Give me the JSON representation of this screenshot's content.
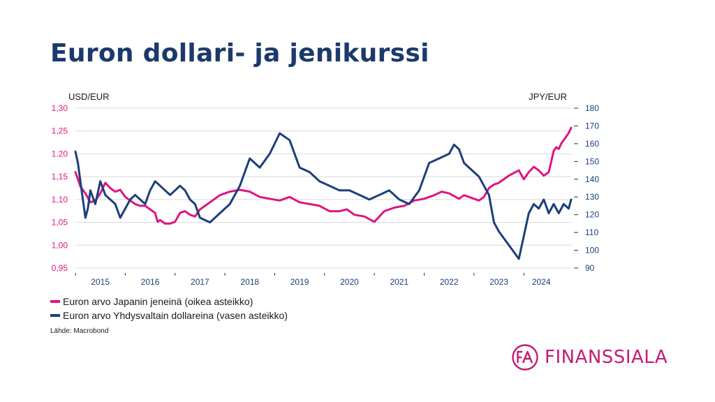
{
  "page": {
    "title": "Euron dollari- ja jenikurssi"
  },
  "legend": {
    "jpy": "Euron arvo Japanin jeneinä (oikea asteikko)",
    "usd": "Euron arvo Yhdysvaltain dollareina (vasen asteikko)"
  },
  "source": "Lähde: Macrobond",
  "logo": {
    "monogram": "FA",
    "text": "FINANSSIALA"
  },
  "colors": {
    "usd": "#1b3f7a",
    "jpy": "#e0157f",
    "grid": "#d9d9d9",
    "title": "#1b3a6b",
    "brand": "#c51a74"
  },
  "chart_data": {
    "type": "line",
    "left_axis": {
      "label": "USD/EUR",
      "range": [
        0.95,
        1.3
      ],
      "ticks": [
        1.3,
        1.25,
        1.2,
        1.15,
        1.1,
        1.05,
        1.0,
        0.95
      ],
      "tick_labels": [
        "1,30",
        "1,25",
        "1.20",
        "1,15",
        "1,10",
        "1,05",
        "1,00",
        "0,95"
      ]
    },
    "right_axis": {
      "label": "JPY/EUR",
      "range": [
        90,
        180
      ],
      "ticks": [
        180,
        170,
        160,
        150,
        140,
        130,
        120,
        110,
        100,
        90
      ],
      "tick_labels": [
        "180",
        "170",
        "160",
        "150",
        "140",
        "130",
        "120",
        "110",
        "100",
        "90"
      ]
    },
    "x_axis": {
      "range": [
        2014.5,
        2024.45
      ],
      "categories": [
        "2015",
        "2016",
        "2017",
        "2018",
        "2019",
        "2020",
        "2021",
        "2022",
        "2023",
        "2024"
      ],
      "category_positions": [
        2015.0,
        2016.0,
        2017.0,
        2018.0,
        2019.0,
        2020.0,
        2021.0,
        2022.0,
        2023.0,
        2023.85
      ],
      "tick_positions": [
        2014.5,
        2015.5,
        2016.5,
        2017.5,
        2018.5,
        2019.5,
        2020.5,
        2021.5,
        2022.5,
        2023.5
      ]
    },
    "series": [
      {
        "name": "Euron arvo Japanin jeneinä (oikea asteikko)",
        "axis": "right",
        "x": [
          2014.5,
          2014.55,
          2014.6,
          2014.7,
          2014.8,
          2014.9,
          2015.0,
          2015.1,
          2015.2,
          2015.3,
          2015.4,
          2015.5,
          2015.6,
          2015.7,
          2015.8,
          2015.9,
          2016.0,
          2016.1,
          2016.15,
          2016.2,
          2016.3,
          2016.4,
          2016.5,
          2016.6,
          2016.7,
          2016.8,
          2016.9,
          2017.0,
          2017.2,
          2017.4,
          2017.6,
          2017.8,
          2018.0,
          2018.2,
          2018.4,
          2018.6,
          2018.8,
          2019.0,
          2019.2,
          2019.4,
          2019.6,
          2019.8,
          2019.95,
          2020.1,
          2020.3,
          2020.5,
          2020.7,
          2020.9,
          2021.1,
          2021.3,
          2021.5,
          2021.7,
          2021.85,
          2022.0,
          2022.2,
          2022.3,
          2022.4,
          2022.5,
          2022.6,
          2022.7,
          2022.8,
          2022.9,
          2023.0,
          2023.2,
          2023.4,
          2023.5,
          2023.6,
          2023.7,
          2023.8,
          2023.9,
          2024.0,
          2024.05,
          2024.1,
          2024.15,
          2024.2,
          2024.25,
          2024.3,
          2024.35,
          2024.4,
          2024.45
        ],
        "y": [
          144,
          140,
          136,
          132,
          127,
          128,
          132,
          138,
          135,
          133,
          134,
          130,
          128,
          126,
          125,
          125,
          123,
          121,
          116,
          117,
          115,
          115,
          116,
          121,
          122,
          120,
          119,
          123,
          127,
          131,
          133,
          134,
          133,
          130,
          129,
          128,
          130,
          127,
          126,
          125,
          122,
          122,
          123,
          120,
          119,
          116,
          122,
          124,
          125,
          128,
          129,
          131,
          133,
          132,
          129,
          131,
          130,
          129,
          128,
          130,
          135,
          137,
          138,
          142,
          145,
          140,
          144,
          147,
          145,
          142,
          144,
          150,
          156,
          158,
          157,
          160,
          162,
          164,
          166,
          169
        ]
      },
      {
        "name": "Euron arvo Yhdysvaltain dollareina (vasen asteikko)",
        "axis": "left",
        "x": [
          2014.5,
          2014.55,
          2014.6,
          2014.65,
          2014.7,
          2014.75,
          2014.8,
          2014.9,
          2015.0,
          2015.1,
          2015.2,
          2015.3,
          2015.4,
          2015.5,
          2015.6,
          2015.7,
          2015.8,
          2015.9,
          2016.0,
          2016.1,
          2016.2,
          2016.3,
          2016.4,
          2016.5,
          2016.6,
          2016.7,
          2016.8,
          2016.9,
          2017.0,
          2017.2,
          2017.4,
          2017.6,
          2017.8,
          2018.0,
          2018.2,
          2018.4,
          2018.6,
          2018.8,
          2019.0,
          2019.2,
          2019.4,
          2019.6,
          2019.8,
          2019.9,
          2020.0,
          2020.2,
          2020.4,
          2020.6,
          2020.8,
          2021.0,
          2021.2,
          2021.4,
          2021.6,
          2021.8,
          2022.0,
          2022.1,
          2022.2,
          2022.3,
          2022.4,
          2022.5,
          2022.6,
          2022.7,
          2022.8,
          2022.9,
          2023.0,
          2023.2,
          2023.4,
          2023.5,
          2023.6,
          2023.7,
          2023.8,
          2023.9,
          2024.0,
          2024.1,
          2024.2,
          2024.3,
          2024.4,
          2024.45
        ],
        "y": [
          1.205,
          1.18,
          1.14,
          1.1,
          1.06,
          1.08,
          1.12,
          1.09,
          1.14,
          1.11,
          1.1,
          1.09,
          1.06,
          1.08,
          1.1,
          1.11,
          1.1,
          1.09,
          1.12,
          1.14,
          1.13,
          1.12,
          1.11,
          1.12,
          1.13,
          1.12,
          1.1,
          1.09,
          1.06,
          1.05,
          1.07,
          1.09,
          1.13,
          1.19,
          1.17,
          1.2,
          1.245,
          1.23,
          1.17,
          1.16,
          1.14,
          1.13,
          1.12,
          1.12,
          1.12,
          1.11,
          1.1,
          1.11,
          1.12,
          1.1,
          1.09,
          1.12,
          1.18,
          1.19,
          1.2,
          1.22,
          1.21,
          1.18,
          1.17,
          1.16,
          1.15,
          1.13,
          1.11,
          1.05,
          1.03,
          1.0,
          0.97,
          1.02,
          1.07,
          1.09,
          1.08,
          1.1,
          1.07,
          1.09,
          1.07,
          1.09,
          1.08,
          1.1
        ]
      }
    ]
  }
}
